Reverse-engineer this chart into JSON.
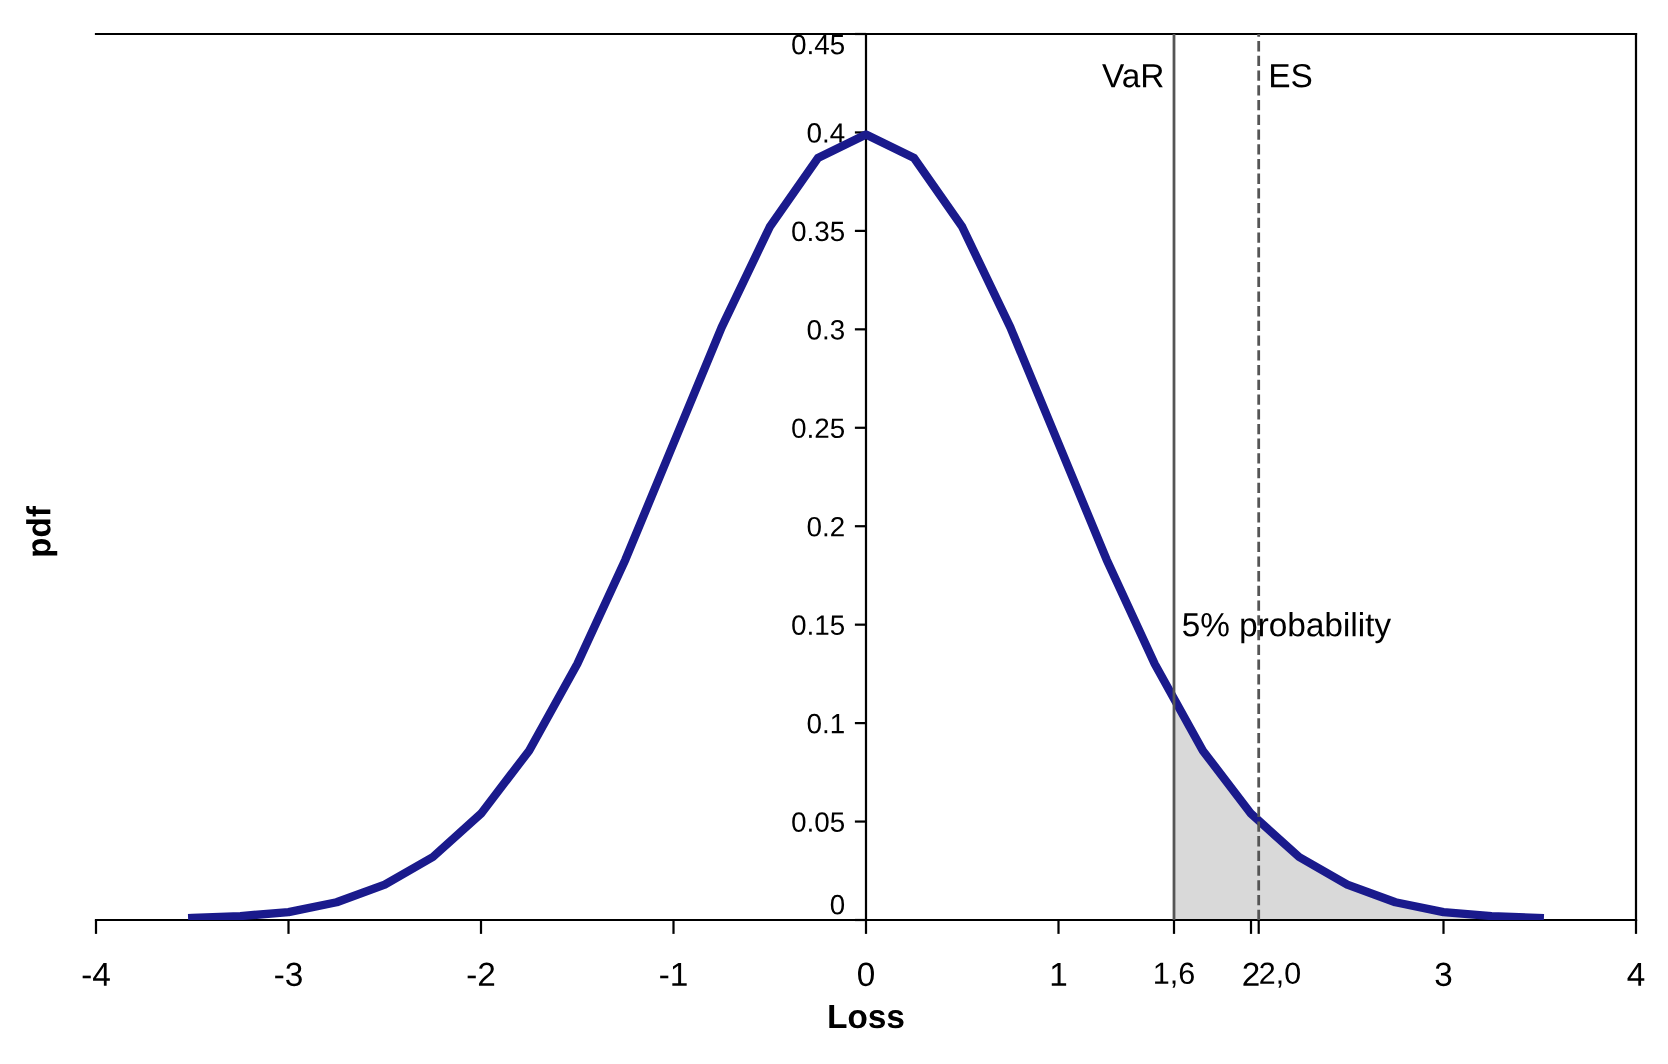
{
  "chart_data": {
    "type": "line",
    "xlabel": "Loss",
    "ylabel": "pdf",
    "series": [
      {
        "type": "area",
        "color": "#d9d9d9",
        "x": [
          1.6,
          1.75,
          2,
          2.25,
          2.5,
          2.75,
          3,
          3.25,
          3.5
        ],
        "values": [
          0.111,
          0.086,
          0.054,
          0.032,
          0.018,
          0.009,
          0.004,
          0.002,
          0.001
        ]
      },
      {
        "color": "#1a1a8c",
        "x": [
          -3.5,
          -3.25,
          -3,
          -2.75,
          -2.5,
          -2.25,
          -2,
          -1.75,
          -1.5,
          -1.25,
          -1,
          -0.75,
          -0.5,
          -0.25,
          0,
          0.25,
          0.5,
          0.75,
          1,
          1.25,
          1.5,
          1.75,
          2,
          2.25,
          2.5,
          2.75,
          3,
          3.25,
          3.5
        ],
        "values": [
          0.001,
          0.002,
          0.004,
          0.009,
          0.018,
          0.032,
          0.054,
          0.086,
          0.13,
          0.183,
          0.242,
          0.301,
          0.352,
          0.387,
          0.399,
          0.387,
          0.352,
          0.301,
          0.242,
          0.183,
          0.13,
          0.086,
          0.054,
          0.032,
          0.018,
          0.009,
          0.004,
          0.002,
          0.001
        ]
      }
    ],
    "xlim": [
      -4,
      4
    ],
    "xticks": [
      -4,
      -3,
      -2,
      -1,
      0,
      1,
      {
        "value": 1.6,
        "label": "1,6"
      },
      2,
      {
        "value": 2.04,
        "label": "2,0"
      },
      3,
      4
    ],
    "ylim": [
      0,
      0.45
    ],
    "yticks": [
      0,
      0.05,
      0.1,
      0.15,
      0.2,
      0.25,
      0.3,
      0.35,
      0.4,
      0.45
    ],
    "ref_lines": [
      {
        "axis": "x",
        "value": 1.6,
        "label": "VaR",
        "color": "#555555",
        "line_style": "solid"
      },
      {
        "axis": "x",
        "value": 2.04,
        "label": "ES",
        "color": "#555555",
        "line_style": "dashed"
      }
    ],
    "annotations": [
      "5% probability"
    ],
    "grid": false,
    "legend": false,
    "marker": "none"
  }
}
